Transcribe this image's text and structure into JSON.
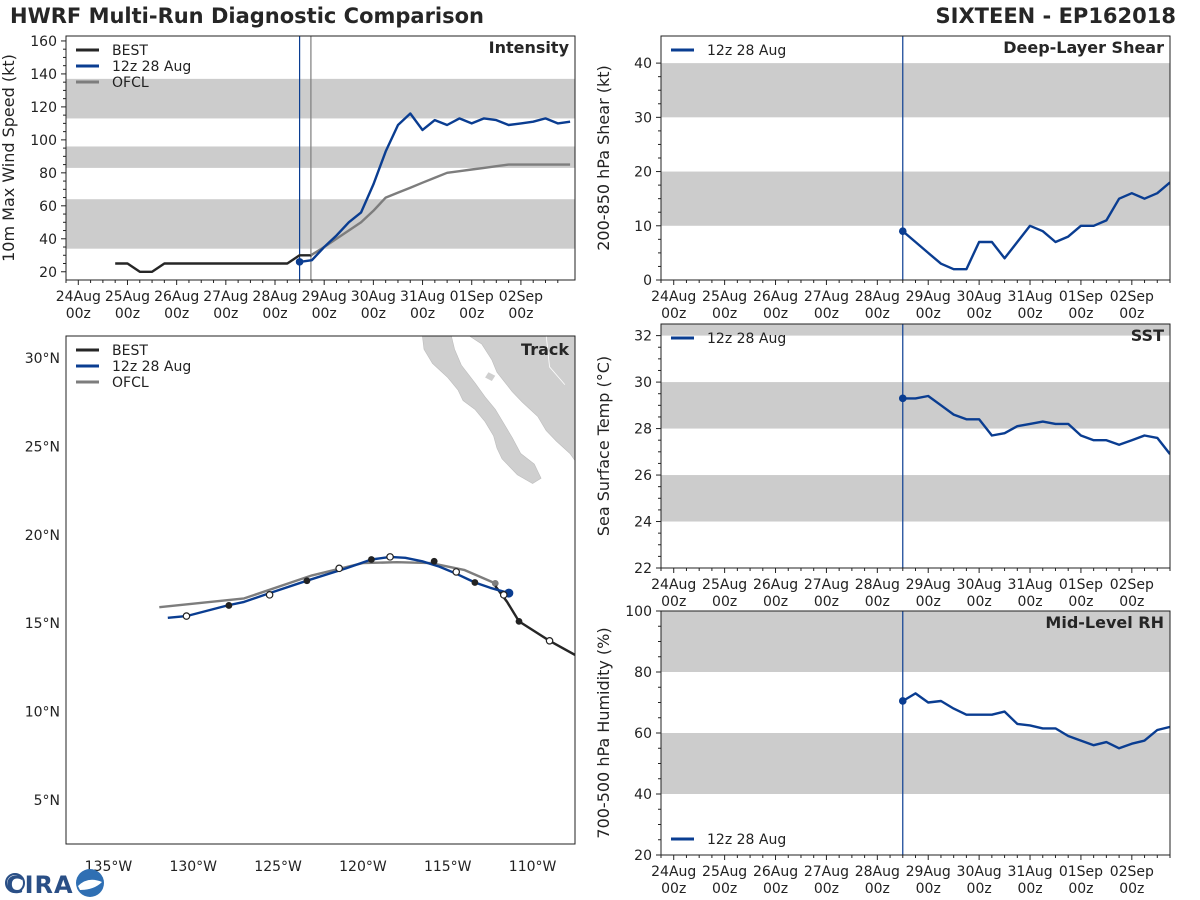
{
  "header": {
    "title": "HWRF Multi-Run Diagnostic Comparison",
    "storm": "SIXTEEN - EP162018"
  },
  "logo": {
    "text": "CIRA"
  },
  "colors": {
    "best": "#262626",
    "run": "#0a3d91",
    "ofcl": "#7d7d7d",
    "band": "#cccccc",
    "axis": "#222222"
  },
  "chart_data": [
    {
      "id": "intensity",
      "type": "line",
      "title": "Intensity",
      "ylabel": "10m Max Wind Speed (kt)",
      "ylim": [
        15,
        163
      ],
      "xlim": [
        -0.25,
        10.1
      ],
      "yticks": [
        20,
        40,
        60,
        80,
        100,
        120,
        140,
        160
      ],
      "x_ticks": [
        {
          "x": 0,
          "l1": "24Aug",
          "l2": "00z"
        },
        {
          "x": 1,
          "l1": "25Aug",
          "l2": "00z"
        },
        {
          "x": 2,
          "l1": "26Aug",
          "l2": "00z"
        },
        {
          "x": 3,
          "l1": "27Aug",
          "l2": "00z"
        },
        {
          "x": 4,
          "l1": "28Aug",
          "l2": "00z"
        },
        {
          "x": 5,
          "l1": "29Aug",
          "l2": "00z"
        },
        {
          "x": 6,
          "l1": "30Aug",
          "l2": "00z"
        },
        {
          "x": 7,
          "l1": "31Aug",
          "l2": "00z"
        },
        {
          "x": 8,
          "l1": "01Sep",
          "l2": "00z"
        },
        {
          "x": 9,
          "l1": "02Sep",
          "l2": "00z"
        }
      ],
      "bands": [
        [
          34,
          64
        ],
        [
          83,
          96
        ],
        [
          113,
          137
        ]
      ],
      "vlines": [
        {
          "x": 4.5,
          "color": "#0a3d91"
        },
        {
          "x": 4.73,
          "color": "#7d7d7d"
        }
      ],
      "legend": [
        {
          "label": "BEST",
          "color": "#262626"
        },
        {
          "label": "12z 28 Aug",
          "color": "#0a3d91"
        },
        {
          "label": "OFCL",
          "color": "#7d7d7d"
        }
      ],
      "series": [
        {
          "name": "BEST",
          "color": "#262626",
          "x": [
            0.75,
            1,
            1.25,
            1.5,
            1.75,
            2,
            2.25,
            2.5,
            2.75,
            3,
            3.25,
            3.5,
            3.75,
            4,
            4.25,
            4.5,
            4.75
          ],
          "y": [
            25,
            25,
            20,
            20,
            25,
            25,
            25,
            25,
            25,
            25,
            25,
            25,
            25,
            25,
            25,
            30,
            30
          ]
        },
        {
          "name": "OFCL",
          "color": "#7d7d7d",
          "x": [
            4.73,
            5,
            5.25,
            5.5,
            5.75,
            6,
            6.25,
            6.5,
            6.75,
            7,
            7.25,
            7.5,
            7.75,
            8,
            8.25,
            8.5,
            8.75,
            9,
            9.25,
            9.5,
            9.75,
            10
          ],
          "y": [
            30,
            35,
            40,
            45,
            50,
            57,
            65,
            68,
            71,
            74,
            77,
            80,
            81,
            82,
            83,
            84,
            85,
            85,
            85,
            85,
            85,
            85
          ]
        },
        {
          "name": "12z 28 Aug",
          "color": "#0a3d91",
          "marker_first": true,
          "x": [
            4.5,
            4.75,
            5,
            5.25,
            5.5,
            5.75,
            6,
            6.25,
            6.5,
            6.75,
            7,
            7.25,
            7.5,
            7.75,
            8,
            8.25,
            8.5,
            8.75,
            9,
            9.25,
            9.5,
            9.75,
            10
          ],
          "y": [
            26,
            27,
            35,
            42,
            50,
            56,
            73,
            93,
            109,
            116,
            106,
            112,
            109,
            113,
            110,
            113,
            112,
            109,
            110,
            111,
            113,
            110,
            111
          ]
        }
      ]
    },
    {
      "id": "shear",
      "type": "line",
      "title": "Deep-Layer Shear",
      "ylabel": "200-850 hPa Shear (kt)",
      "ylim": [
        0,
        45
      ],
      "xlim": [
        -0.25,
        9.75
      ],
      "yticks": [
        0,
        10,
        20,
        30,
        40
      ],
      "x_ticks": [
        {
          "x": 0,
          "l1": "24Aug",
          "l2": "00z"
        },
        {
          "x": 1,
          "l1": "25Aug",
          "l2": "00z"
        },
        {
          "x": 2,
          "l1": "26Aug",
          "l2": "00z"
        },
        {
          "x": 3,
          "l1": "27Aug",
          "l2": "00z"
        },
        {
          "x": 4,
          "l1": "28Aug",
          "l2": "00z"
        },
        {
          "x": 5,
          "l1": "29Aug",
          "l2": "00z"
        },
        {
          "x": 6,
          "l1": "30Aug",
          "l2": "00z"
        },
        {
          "x": 7,
          "l1": "31Aug",
          "l2": "00z"
        },
        {
          "x": 8,
          "l1": "01Sep",
          "l2": "00z"
        },
        {
          "x": 9,
          "l1": "02Sep",
          "l2": "00z"
        }
      ],
      "bands": [
        [
          10,
          20
        ],
        [
          30,
          40
        ]
      ],
      "vlines": [
        {
          "x": 4.5,
          "color": "#0a3d91"
        }
      ],
      "legend": [
        {
          "label": "12z 28 Aug",
          "color": "#0a3d91"
        }
      ],
      "series": [
        {
          "name": "12z 28 Aug",
          "color": "#0a3d91",
          "marker_first": true,
          "x": [
            4.5,
            4.75,
            5,
            5.25,
            5.5,
            5.75,
            6,
            6.25,
            6.5,
            6.75,
            7,
            7.25,
            7.5,
            7.75,
            8,
            8.25,
            8.5,
            8.75,
            9,
            9.25,
            9.5,
            9.75
          ],
          "y": [
            9,
            7,
            5,
            3,
            2,
            2,
            7,
            7,
            4,
            7,
            10,
            9,
            7,
            8,
            10,
            10,
            11,
            15,
            16,
            15,
            16,
            18
          ]
        }
      ]
    },
    {
      "id": "sst",
      "type": "line",
      "title": "SST",
      "ylabel": "Sea Surface Temp (°C)",
      "ylim": [
        22,
        32.5
      ],
      "xlim": [
        -0.25,
        9.75
      ],
      "yticks": [
        22,
        24,
        26,
        28,
        30,
        32
      ],
      "x_ticks": [
        {
          "x": 0,
          "l1": "24Aug",
          "l2": "00z"
        },
        {
          "x": 1,
          "l1": "25Aug",
          "l2": "00z"
        },
        {
          "x": 2,
          "l1": "26Aug",
          "l2": "00z"
        },
        {
          "x": 3,
          "l1": "27Aug",
          "l2": "00z"
        },
        {
          "x": 4,
          "l1": "28Aug",
          "l2": "00z"
        },
        {
          "x": 5,
          "l1": "29Aug",
          "l2": "00z"
        },
        {
          "x": 6,
          "l1": "30Aug",
          "l2": "00z"
        },
        {
          "x": 7,
          "l1": "31Aug",
          "l2": "00z"
        },
        {
          "x": 8,
          "l1": "01Sep",
          "l2": "00z"
        },
        {
          "x": 9,
          "l1": "02Sep",
          "l2": "00z"
        }
      ],
      "bands": [
        [
          24,
          26
        ],
        [
          28,
          30
        ],
        [
          32,
          34
        ]
      ],
      "vlines": [
        {
          "x": 4.5,
          "color": "#0a3d91"
        }
      ],
      "legend": [
        {
          "label": "12z 28 Aug",
          "color": "#0a3d91"
        }
      ],
      "series": [
        {
          "name": "12z 28 Aug",
          "color": "#0a3d91",
          "marker_first": true,
          "x": [
            4.5,
            4.75,
            5,
            5.25,
            5.5,
            5.75,
            6,
            6.25,
            6.5,
            6.75,
            7,
            7.25,
            7.5,
            7.75,
            8,
            8.25,
            8.5,
            8.75,
            9,
            9.25,
            9.5,
            9.75
          ],
          "y": [
            29.3,
            29.3,
            29.4,
            29.0,
            28.6,
            28.4,
            28.4,
            27.7,
            27.8,
            28.1,
            28.2,
            28.3,
            28.2,
            28.2,
            27.7,
            27.5,
            27.5,
            27.3,
            27.5,
            27.7,
            27.6,
            26.9
          ]
        }
      ]
    },
    {
      "id": "rh",
      "type": "line",
      "title": "Mid-Level RH",
      "ylabel": "700-500 hPa Humidity (%)",
      "ylim": [
        20,
        100
      ],
      "xlim": [
        -0.25,
        9.75
      ],
      "yticks": [
        20,
        40,
        60,
        80,
        100
      ],
      "x_ticks": [
        {
          "x": 0,
          "l1": "24Aug",
          "l2": "00z"
        },
        {
          "x": 1,
          "l1": "25Aug",
          "l2": "00z"
        },
        {
          "x": 2,
          "l1": "26Aug",
          "l2": "00z"
        },
        {
          "x": 3,
          "l1": "27Aug",
          "l2": "00z"
        },
        {
          "x": 4,
          "l1": "28Aug",
          "l2": "00z"
        },
        {
          "x": 5,
          "l1": "29Aug",
          "l2": "00z"
        },
        {
          "x": 6,
          "l1": "30Aug",
          "l2": "00z"
        },
        {
          "x": 7,
          "l1": "31Aug",
          "l2": "00z"
        },
        {
          "x": 8,
          "l1": "01Sep",
          "l2": "00z"
        },
        {
          "x": 9,
          "l1": "02Sep",
          "l2": "00z"
        }
      ],
      "bands": [
        [
          40,
          60
        ],
        [
          80,
          100
        ]
      ],
      "vlines": [
        {
          "x": 4.5,
          "color": "#0a3d91"
        }
      ],
      "legend": [
        {
          "label": "12z 28 Aug",
          "color": "#0a3d91",
          "position": "bottom-left"
        }
      ],
      "series": [
        {
          "name": "12z 28 Aug",
          "color": "#0a3d91",
          "marker_first": true,
          "x": [
            4.5,
            4.75,
            5,
            5.25,
            5.5,
            5.75,
            6,
            6.25,
            6.5,
            6.75,
            7,
            7.25,
            7.5,
            7.75,
            8,
            8.25,
            8.5,
            8.75,
            9,
            9.25,
            9.5,
            9.75
          ],
          "y": [
            70.5,
            73,
            70,
            70.5,
            68,
            66,
            66,
            66,
            67,
            63,
            62.5,
            61.5,
            61.5,
            59,
            57.5,
            56,
            57,
            55,
            56.5,
            57.5,
            61,
            62
          ]
        }
      ]
    },
    {
      "id": "track",
      "type": "scatter",
      "title": "Track",
      "xlabel": "",
      "ylabel": "",
      "xlim": [
        -137.5,
        -107.5
      ],
      "ylim": [
        2.5,
        31.25
      ],
      "x_ticks": [
        {
          "v": -135,
          "label": "135°W"
        },
        {
          "v": -130,
          "label": "130°W"
        },
        {
          "v": -125,
          "label": "125°W"
        },
        {
          "v": -120,
          "label": "120°W"
        },
        {
          "v": -115,
          "label": "115°W"
        },
        {
          "v": -110,
          "label": "110°W"
        }
      ],
      "y_ticks": [
        {
          "v": 5,
          "label": "5°N"
        },
        {
          "v": 10,
          "label": "10°N"
        },
        {
          "v": 15,
          "label": "15°N"
        },
        {
          "v": 20,
          "label": "20°N"
        },
        {
          "v": 25,
          "label": "25°N"
        },
        {
          "v": 30,
          "label": "30°N"
        }
      ],
      "legend": [
        {
          "label": "BEST",
          "color": "#262626"
        },
        {
          "label": "12z 28 Aug",
          "color": "#0a3d91"
        },
        {
          "label": "OFCL",
          "color": "#7d7d7d"
        }
      ],
      "series": [
        {
          "name": "BEST",
          "color": "#262626",
          "lon": [
            -107.5,
            -109,
            -110.8,
            -111.5,
            -112.2
          ],
          "lat": [
            13.2,
            14.0,
            15.1,
            16.2,
            17.1
          ],
          "markers": [
            {
              "lon": -109,
              "lat": 14.0,
              "fill": "open"
            },
            {
              "lon": -110.8,
              "lat": 15.1,
              "fill": "filled"
            }
          ]
        },
        {
          "name": "OFCL",
          "color": "#7d7d7d",
          "lon": [
            -112.2,
            -114,
            -116,
            -118,
            -120,
            -123,
            -127,
            -132
          ],
          "lat": [
            17.25,
            18.0,
            18.4,
            18.45,
            18.4,
            17.7,
            16.4,
            15.9
          ],
          "markers": [
            {
              "lon": -112.2,
              "lat": 17.25,
              "fill": "filled"
            }
          ]
        },
        {
          "name": "12z 28 Aug",
          "color": "#0a3d91",
          "lon": [
            -111.4,
            -112.5,
            -113.4,
            -114.5,
            -115.5,
            -116.5,
            -117.5,
            -118.4,
            -119.5,
            -121,
            -123.3,
            -125.5,
            -127,
            -128,
            -130.4,
            -131.5
          ],
          "lat": [
            16.7,
            17.0,
            17.3,
            17.8,
            18.2,
            18.5,
            18.7,
            18.75,
            18.6,
            18.1,
            17.4,
            16.7,
            16.2,
            16.0,
            15.4,
            15.3
          ],
          "markers": [
            {
              "lon": -111.4,
              "lat": 16.7,
              "fill": "big"
            },
            {
              "lon": -111.7,
              "lat": 16.6,
              "fill": "open"
            },
            {
              "lon": -113.4,
              "lat": 17.3,
              "fill": "filled"
            },
            {
              "lon": -114.5,
              "lat": 17.9,
              "fill": "open"
            },
            {
              "lon": -115.8,
              "lat": 18.5,
              "fill": "filled"
            },
            {
              "lon": -118.4,
              "lat": 18.75,
              "fill": "open"
            },
            {
              "lon": -119.5,
              "lat": 18.6,
              "fill": "filled"
            },
            {
              "lon": -121.4,
              "lat": 18.1,
              "fill": "open"
            },
            {
              "lon": -123.3,
              "lat": 17.4,
              "fill": "filled"
            },
            {
              "lon": -125.5,
              "lat": 16.6,
              "fill": "open"
            },
            {
              "lon": -127.9,
              "lat": 16.0,
              "fill": "filled"
            },
            {
              "lon": -130.4,
              "lat": 15.4,
              "fill": "open"
            }
          ]
        }
      ]
    }
  ]
}
